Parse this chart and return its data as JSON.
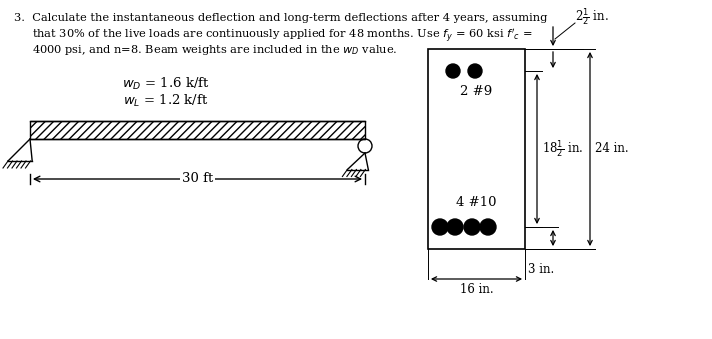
{
  "background_color": "#ffffff",
  "line1": "3.  Calculate the instantaneous deflection and long-term deflections after 4 years, assuming",
  "line2": "     that 30% of the live loads are continuously applied for 48 months. Use $f_y$ = 60 ksi $f'_c$ =",
  "line3": "     4000 psi, and n=8. Beam weights are included in the $w_D$ value.",
  "wD_label": "$w_D$ = 1.6 k/ft",
  "wL_label": "$w_L$ = 1.2 k/ft",
  "span_label": "30 ft",
  "dim_top": "2$\\frac{1}{2}$ in.",
  "dim_side_inner": "18$\\frac{1}{2}$ in.",
  "dim_side_outer": "24 in.",
  "dim_bottom_width": "16 in.",
  "dim_bottom_cover": "3 in.",
  "bar_top_label": "2 #9",
  "bar_bot_label": "4 #10"
}
